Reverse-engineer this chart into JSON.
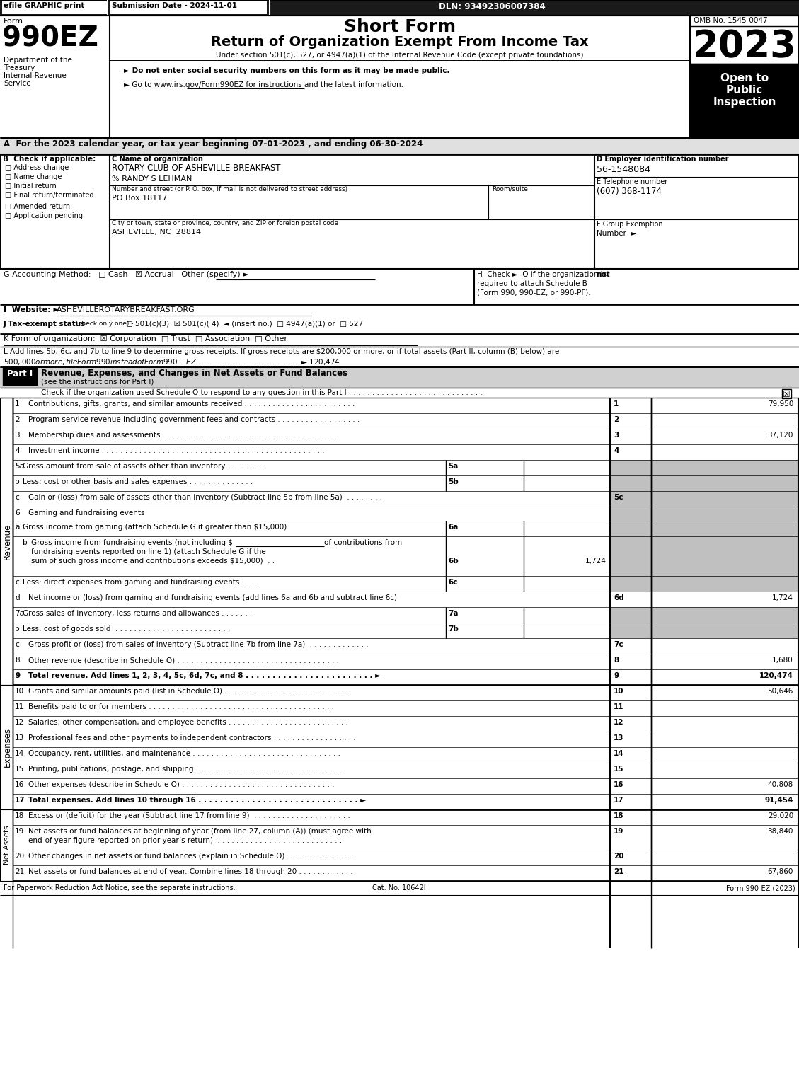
{
  "efile_text": "efile GRAPHIC print",
  "submission_date": "Submission Date - 2024-11-01",
  "dln": "DLN: 93492306007384",
  "year": "2023",
  "omb": "OMB No. 1545-0047",
  "open_to": "Open to\nPublic\nInspection",
  "dept1": "Department of the",
  "dept2": "Treasury",
  "dept3": "Internal Revenue",
  "dept4": "Service",
  "bullet1": "► Do not enter social security numbers on this form as it may be made public.",
  "bullet2": "► Go to www.irs.gov/Form990EZ for instructions and the latest information.",
  "section_a": "A  For the 2023 calendar year, or tax year beginning 07-01-2023 , and ending 06-30-2024",
  "checkboxes_b": [
    "Address change",
    "Name change",
    "Initial return",
    "Final return/terminated",
    "Amended return",
    "Application pending"
  ],
  "org_name": "ROTARY CLUB OF ASHEVILLE BREAKFAST",
  "care_of": "% RANDY S LEHMAN",
  "address_label": "Number and street (or P. O. box, if mail is not delivered to street address)",
  "room_label": "Room/suite",
  "address": "PO Box 18117",
  "city_label": "City or town, state or province, country, and ZIP or foreign postal code",
  "city": "ASHEVILLE, NC  28814",
  "ein": "56-1548084",
  "phone": "(607) 368-1174",
  "footer1": "For Paperwork Reduction Act Notice, see the separate instructions.",
  "footer2": "Cat. No. 10642I",
  "footer3": "Form 990-EZ (2023)"
}
